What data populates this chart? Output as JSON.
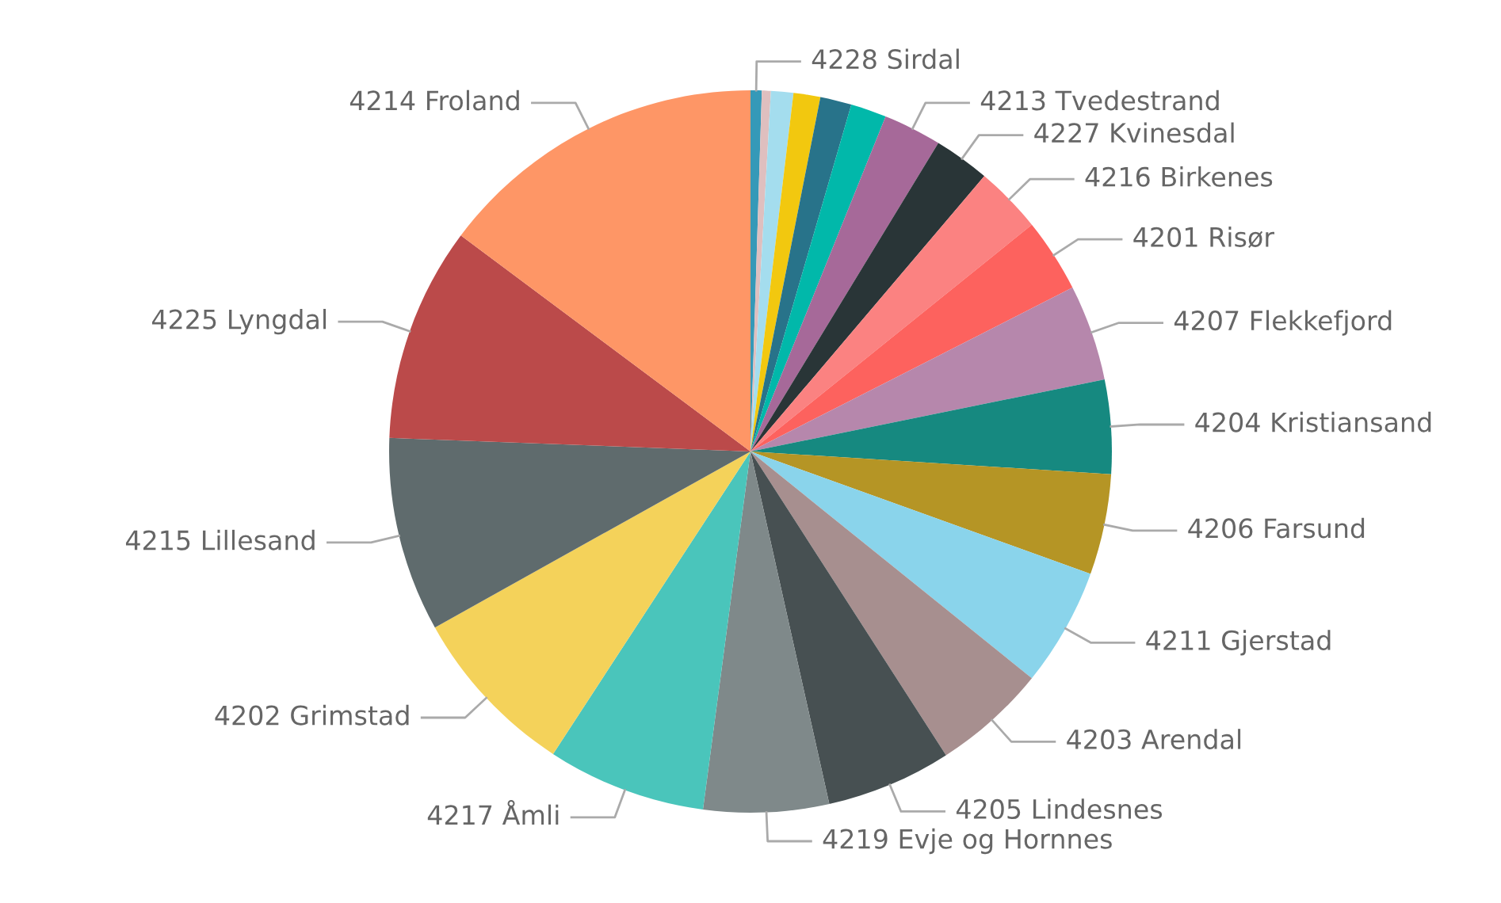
{
  "chart_data": {
    "type": "pie",
    "categories": [
      "4228 Sirdal",
      null,
      null,
      null,
      null,
      null,
      "4213 Tvedestrand",
      "4227 Kvinesdal",
      "4216 Birkenes",
      "4201 Risør",
      "4207 Flekkefjord",
      "4204 Kristiansand",
      "4206 Farsund",
      "4211 Gjerstad",
      "4203 Arendal",
      "4205 Lindesnes",
      "4219 Evje og Hornnes",
      "4217 Åmli",
      "4202 Grimstad",
      "4215 Lillesand",
      "4225 Lyngdal",
      "4214 Froland"
    ],
    "values": [
      0.5,
      0.4,
      1.0,
      1.2,
      1.4,
      1.6,
      2.6,
      2.5,
      3.0,
      3.3,
      4.3,
      4.2,
      4.5,
      5.3,
      5.1,
      5.6,
      5.6,
      7.1,
      7.7,
      8.7,
      9.6,
      14.8
    ],
    "colors": [
      "#3599b8",
      "#dfbfbf",
      "#a4ddee",
      "#f2c80f",
      "#28738a",
      "#01b8aa",
      "#a66999",
      "#293537",
      "#fb8281",
      "#fd625e",
      "#b687ac",
      "#168980",
      "#b59525",
      "#8ad4eb",
      "#a78f8f",
      "#475052",
      "#7f898a",
      "#4ac5bb",
      "#f4d25a",
      "#5f6b6d",
      "#bb4a4a",
      "#fe9666"
    ]
  }
}
